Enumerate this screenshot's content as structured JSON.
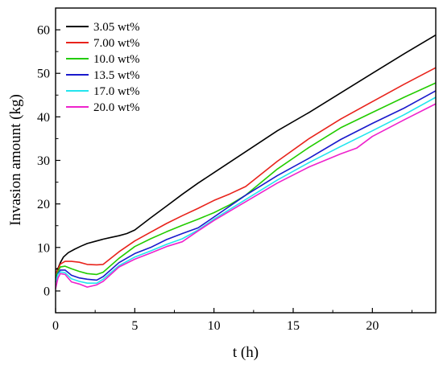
{
  "chart_data": {
    "type": "line",
    "xlabel": "t (h)",
    "ylabel": "Invasion amount (kg)",
    "xlim": [
      0,
      24
    ],
    "ylim": [
      -5,
      65
    ],
    "xticks": [
      0,
      5,
      10,
      15,
      20
    ],
    "yticks": [
      0,
      10,
      20,
      30,
      40,
      50,
      60
    ],
    "grid": false,
    "legend_position": "top-left",
    "series": [
      {
        "name": "3.05 wt%",
        "color": "#000000",
        "x": [
          0,
          0.15,
          0.3,
          0.5,
          0.8,
          1.2,
          1.6,
          2.0,
          2.5,
          3.0,
          3.5,
          4.0,
          4.5,
          5.0,
          6,
          7,
          8,
          9,
          10,
          12,
          14,
          16,
          18,
          20,
          22,
          24
        ],
        "y": [
          5.0,
          5.2,
          6.5,
          7.8,
          8.8,
          9.6,
          10.3,
          10.9,
          11.4,
          11.9,
          12.3,
          12.7,
          13.2,
          14.0,
          16.8,
          19.5,
          22.2,
          24.8,
          27.2,
          32.0,
          36.8,
          41.0,
          45.5,
          50.0,
          54.5,
          58.8
        ]
      },
      {
        "name": "7.00 wt%",
        "color": "#e8231b",
        "x": [
          0,
          0.15,
          0.3,
          0.6,
          1.0,
          1.5,
          2.0,
          2.6,
          3.0,
          4,
          5,
          6,
          7,
          8,
          9,
          10,
          11,
          12,
          14,
          16,
          18,
          20,
          22,
          24
        ],
        "y": [
          4.0,
          5.0,
          6.2,
          6.8,
          6.8,
          6.6,
          6.1,
          6.0,
          6.1,
          9.0,
          11.5,
          13.5,
          15.5,
          17.3,
          19.0,
          20.8,
          22.3,
          24.0,
          29.8,
          35.0,
          39.5,
          43.5,
          47.5,
          51.3
        ]
      },
      {
        "name": "10.0 wt%",
        "color": "#22cc00",
        "x": [
          0,
          0.15,
          0.3,
          0.6,
          1.0,
          1.5,
          2.0,
          2.6,
          3.0,
          4,
          5,
          6,
          7,
          8,
          9,
          10,
          11,
          12,
          14,
          16,
          18,
          20,
          22,
          24
        ],
        "y": [
          3.0,
          4.5,
          5.5,
          5.7,
          5.1,
          4.5,
          4.0,
          3.8,
          4.3,
          7.5,
          10.2,
          12.0,
          13.6,
          15.1,
          16.5,
          18.0,
          19.8,
          22.0,
          28.0,
          33.0,
          37.5,
          41.0,
          44.5,
          47.8
        ]
      },
      {
        "name": "13.5 wt%",
        "color": "#1a1acc",
        "x": [
          0,
          0.15,
          0.3,
          0.6,
          1.0,
          1.5,
          2.0,
          2.6,
          3.0,
          4,
          5,
          6,
          7,
          8,
          9,
          10,
          12,
          14,
          16,
          18,
          20,
          22,
          24
        ],
        "y": [
          2.0,
          4.0,
          4.8,
          4.8,
          3.6,
          3.0,
          2.7,
          2.5,
          3.3,
          6.5,
          8.6,
          10.0,
          11.8,
          13.2,
          14.5,
          17.0,
          22.0,
          26.5,
          30.5,
          34.8,
          38.5,
          42.0,
          46.0
        ]
      },
      {
        "name": "17.0 wt%",
        "color": "#22e5ee",
        "x": [
          0,
          0.15,
          0.3,
          0.6,
          1.0,
          1.5,
          2.0,
          2.6,
          3.0,
          4,
          5,
          6,
          7,
          8,
          9,
          10,
          12,
          14,
          16,
          18,
          20,
          22,
          24
        ],
        "y": [
          2.0,
          3.8,
          4.4,
          4.2,
          2.8,
          2.2,
          1.8,
          1.8,
          2.7,
          5.8,
          7.8,
          9.2,
          10.7,
          12.0,
          14.0,
          16.5,
          21.0,
          25.5,
          29.5,
          33.2,
          36.8,
          40.5,
          44.5
        ]
      },
      {
        "name": "20.0 wt%",
        "color": "#ee22cc",
        "x": [
          0,
          0.15,
          0.3,
          0.6,
          1.0,
          1.5,
          2.0,
          2.6,
          3.0,
          4,
          5,
          6,
          7,
          8,
          9,
          10,
          12,
          14,
          16,
          18,
          19,
          20,
          22,
          24
        ],
        "y": [
          0.5,
          3.0,
          4.0,
          3.8,
          2.1,
          1.6,
          0.9,
          1.4,
          2.2,
          5.5,
          7.3,
          8.7,
          10.2,
          11.3,
          13.8,
          16.2,
          20.5,
          24.8,
          28.5,
          31.5,
          32.8,
          35.5,
          39.3,
          43.0
        ]
      }
    ]
  }
}
